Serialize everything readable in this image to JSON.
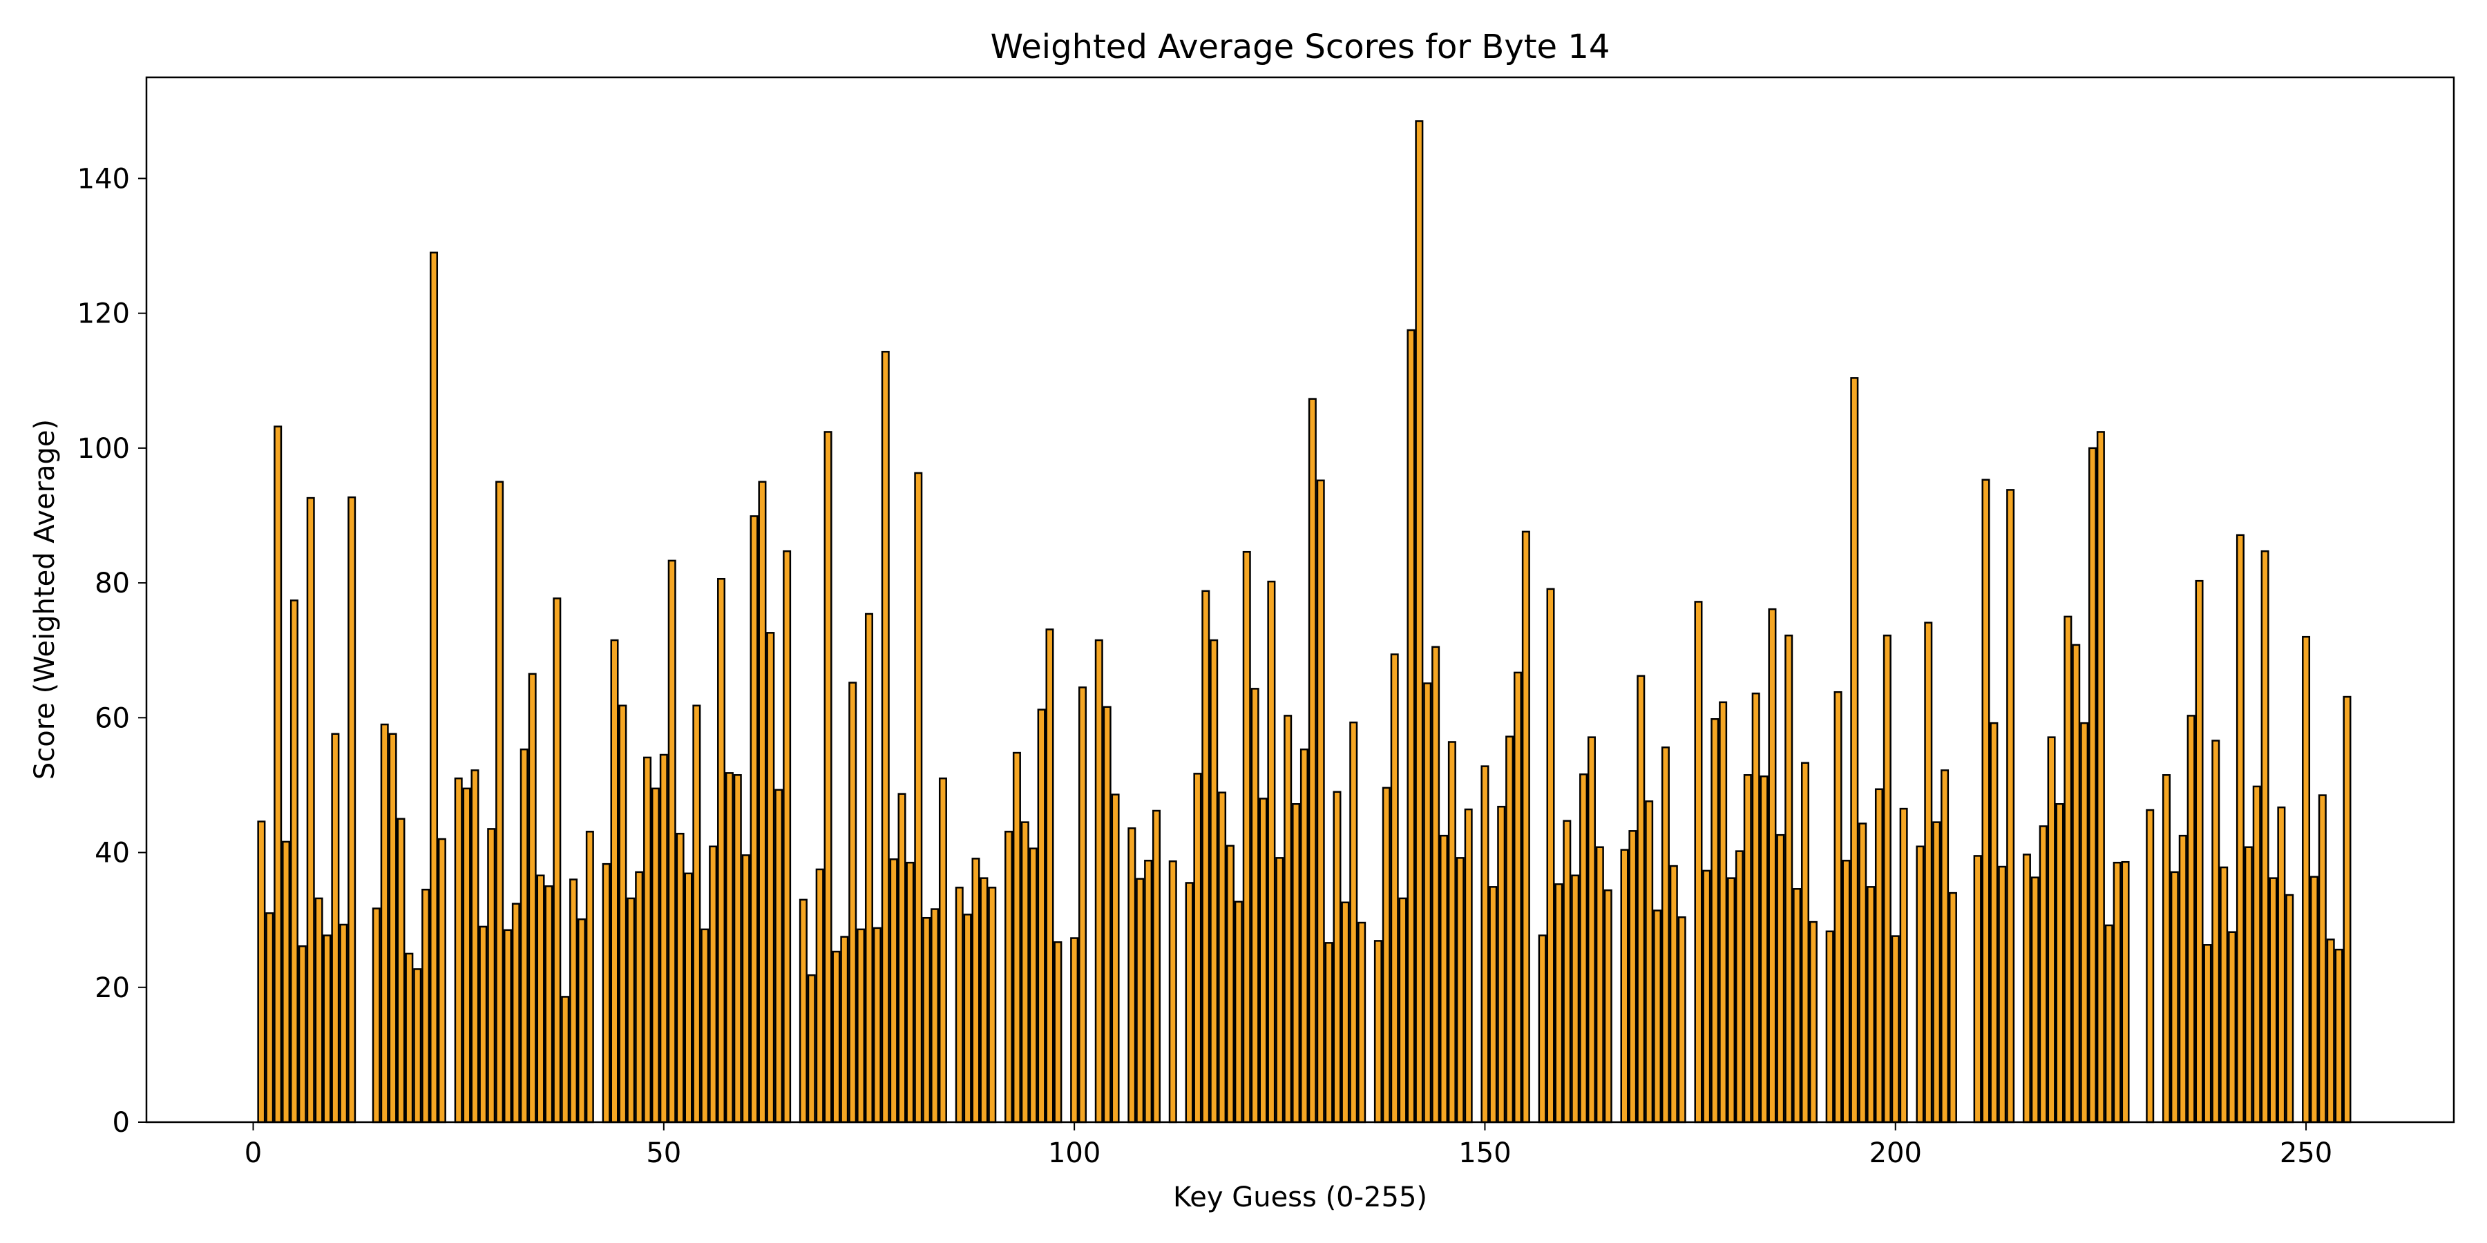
{
  "chart_data": {
    "type": "bar",
    "title": "Weighted Average Scores for Byte 14",
    "xlabel": "Key Guess (0-255)",
    "ylabel": "Score (Weighted Average)",
    "xlim": [
      -13,
      268
    ],
    "ylim": [
      0,
      155
    ],
    "xticks": [
      0,
      50,
      100,
      150,
      200,
      250
    ],
    "yticks": [
      0,
      20,
      40,
      60,
      80,
      100,
      120,
      140
    ],
    "bar_color": "#f5a623",
    "edge_color": "#000000",
    "grid": false,
    "x": [
      0,
      1,
      2,
      3,
      4,
      5,
      6,
      7,
      8,
      9,
      10,
      11,
      12,
      13,
      14,
      15,
      16,
      17,
      18,
      19,
      20,
      21,
      22,
      23,
      24,
      25,
      26,
      27,
      28,
      29,
      30,
      31,
      32,
      33,
      34,
      35,
      36,
      37,
      38,
      39,
      40,
      41,
      42,
      43,
      44,
      45,
      46,
      47,
      48,
      49,
      50,
      51,
      52,
      53,
      54,
      55,
      56,
      57,
      58,
      59,
      60,
      61,
      62,
      63,
      64,
      65,
      66,
      67,
      68,
      69,
      70,
      71,
      72,
      73,
      74,
      75,
      76,
      77,
      78,
      79,
      80,
      81,
      82,
      83,
      84,
      85,
      86,
      87,
      88,
      89,
      90,
      91,
      92,
      93,
      94,
      95,
      96,
      97,
      98,
      99,
      100,
      101,
      102,
      103,
      104,
      105,
      106,
      107,
      108,
      109,
      110,
      111,
      112,
      113,
      114,
      115,
      116,
      117,
      118,
      119,
      120,
      121,
      122,
      123,
      124,
      125,
      126,
      127,
      128,
      129,
      130,
      131,
      132,
      133,
      134,
      135,
      136,
      137,
      138,
      139,
      140,
      141,
      142,
      143,
      144,
      145,
      146,
      147,
      148,
      149,
      150,
      151,
      152,
      153,
      154,
      155,
      156,
      157,
      158,
      159,
      160,
      161,
      162,
      163,
      164,
      165,
      166,
      167,
      168,
      169,
      170,
      171,
      172,
      173,
      174,
      175,
      176,
      177,
      178,
      179,
      180,
      181,
      182,
      183,
      184,
      185,
      186,
      187,
      188,
      189,
      190,
      191,
      192,
      193,
      194,
      195,
      196,
      197,
      198,
      199,
      200,
      201,
      202,
      203,
      204,
      205,
      206,
      207,
      208,
      209,
      210,
      211,
      212,
      213,
      214,
      215,
      216,
      217,
      218,
      219,
      220,
      221,
      222,
      223,
      224,
      225,
      226,
      227,
      228,
      229,
      230,
      231,
      232,
      233,
      234,
      235,
      236,
      237,
      238,
      239,
      240,
      241,
      242,
      243,
      244,
      245,
      246,
      247,
      248,
      249,
      250,
      251,
      252,
      253,
      254,
      255
    ],
    "values": [
      0,
      44.6,
      31,
      103.2,
      41.6,
      77.4,
      26.1,
      92.6,
      33.2,
      27.7,
      57.6,
      29.3,
      92.7,
      0,
      0,
      31.7,
      59,
      57.6,
      45,
      25,
      22.7,
      34.5,
      129,
      42,
      0,
      51,
      49.5,
      52.2,
      29,
      43.5,
      95,
      28.5,
      32.4,
      55.3,
      66.5,
      36.6,
      35,
      77.7,
      18.6,
      36,
      30.1,
      43.1,
      0,
      38.3,
      71.5,
      61.8,
      33.2,
      37.1,
      54.1,
      49.5,
      54.5,
      83.3,
      42.8,
      36.9,
      61.8,
      28.6,
      40.9,
      80.6,
      51.8,
      51.5,
      39.6,
      89.9,
      95,
      72.6,
      49.3,
      84.7,
      0,
      33,
      21.8,
      37.5,
      102.4,
      25.3,
      27.5,
      65.2,
      28.6,
      75.4,
      28.8,
      114.3,
      39,
      48.7,
      38.5,
      96.3,
      30.3,
      31.6,
      51,
      0,
      34.8,
      30.8,
      39.1,
      36.2,
      34.8,
      0,
      43.1,
      54.8,
      44.5,
      40.6,
      61.2,
      73.1,
      26.7,
      0,
      27.3,
      64.5,
      0,
      71.5,
      61.6,
      48.6,
      0,
      43.6,
      36.1,
      38.8,
      46.2,
      0,
      38.7,
      0,
      35.5,
      51.7,
      78.8,
      71.5,
      48.9,
      41,
      32.7,
      84.6,
      64.3,
      48,
      80.2,
      39.2,
      60.3,
      47.2,
      55.3,
      107.3,
      95.2,
      26.6,
      49,
      32.6,
      59.3,
      29.6,
      0,
      26.9,
      49.6,
      69.4,
      33.2,
      117.5,
      148.5,
      65.1,
      70.5,
      42.5,
      56.4,
      39.2,
      46.4,
      0,
      52.8,
      34.9,
      46.8,
      57.2,
      66.7,
      87.6,
      0,
      27.7,
      79.1,
      35.3,
      44.7,
      36.6,
      51.6,
      57.1,
      40.8,
      34.4,
      0,
      40.4,
      43.2,
      66.2,
      47.6,
      31.4,
      55.6,
      38,
      30.4,
      0,
      77.2,
      37.3,
      59.8,
      62.3,
      36.2,
      40.2,
      51.5,
      63.6,
      51.3,
      76.1,
      42.6,
      72.2,
      34.6,
      53.3,
      29.7,
      0,
      28.3,
      63.8,
      38.8,
      110.4,
      44.3,
      34.9,
      49.4,
      72.2,
      27.6,
      46.5,
      0,
      40.9,
      74.1,
      44.5,
      52.2,
      34,
      0,
      0,
      39.5,
      95.3,
      59.2,
      37.9,
      93.8,
      0,
      39.7,
      36.3,
      43.9,
      57.1,
      47.2,
      75,
      70.8,
      59.2,
      100,
      102.4,
      29.2,
      38.5,
      38.6,
      0,
      0,
      46.3,
      0,
      51.5,
      37.1,
      42.5,
      60.3,
      80.3,
      26.3,
      56.6,
      37.8,
      28.2,
      87.1,
      40.8,
      49.8,
      84.7,
      36.2,
      46.7,
      33.7,
      0,
      72,
      36.4,
      48.5,
      27.1,
      25.6,
      63.1
    ]
  }
}
